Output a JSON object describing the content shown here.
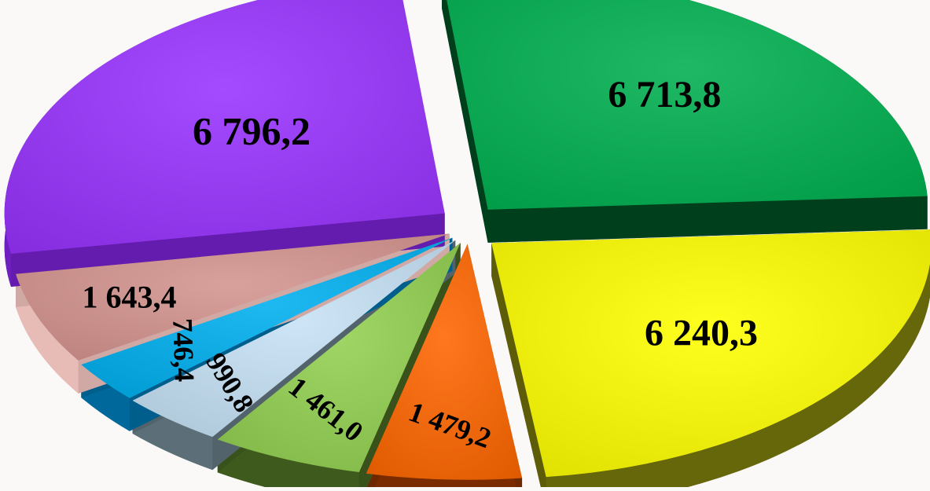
{
  "chart_data": {
    "type": "pie",
    "exploded": true,
    "three_d": true,
    "legend": "none",
    "labels": [
      "6 713,8",
      "6 240,3",
      "1 479,2",
      "1 461,0",
      "990,8",
      "746,4",
      "1 643,4",
      "6 796,2"
    ],
    "values": [
      6713.8,
      6240.3,
      1479.2,
      1461.0,
      990.8,
      746.4,
      1643.4,
      6796.2
    ],
    "colors": [
      "#00b050",
      "#ffff00",
      "#ff6600",
      "#92d050",
      "#c6e2f5",
      "#00b0f0",
      "#d4948f",
      "#9933ff"
    ],
    "side_colors": [
      "#00461f",
      "#66660a",
      "#7a2c00",
      "#3f5a1d",
      "#5c6e78",
      "#00689b",
      "#e7bbb6",
      "#6e1fc0"
    ]
  }
}
